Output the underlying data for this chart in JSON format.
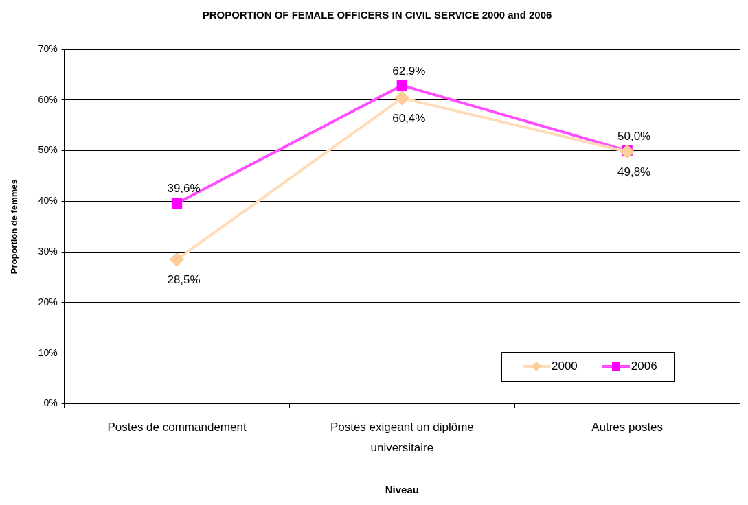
{
  "chart_data": {
    "type": "line",
    "title": "PROPORTION OF FEMALE OFFICERS IN CIVIL SERVICE 2000 and 2006",
    "xlabel": "Niveau",
    "ylabel": "Proportion de femmes",
    "categories": [
      "Postes de commandement",
      "Postes exigeant un diplôme universitaire",
      "Autres postes"
    ],
    "series": [
      {
        "name": "2000",
        "color": "#ffcc99",
        "marker": "diamond",
        "values": [
          28.5,
          60.4,
          49.8
        ],
        "value_labels": [
          "28,5%",
          "60,4%",
          "49,8%"
        ]
      },
      {
        "name": "2006",
        "color": "#ff00ff",
        "marker": "square",
        "values": [
          39.6,
          62.9,
          50.0
        ],
        "value_labels": [
          "39,6%",
          "62,9%",
          "50,0%"
        ]
      }
    ],
    "ylim": [
      0,
      70
    ],
    "yticks": [
      {
        "value": 0,
        "label": "0%"
      },
      {
        "value": 10,
        "label": "10%"
      },
      {
        "value": 20,
        "label": "20%"
      },
      {
        "value": 30,
        "label": "30%"
      },
      {
        "value": 40,
        "label": "40%"
      },
      {
        "value": 50,
        "label": "50%"
      },
      {
        "value": 60,
        "label": "60%"
      },
      {
        "value": 70,
        "label": "70%"
      }
    ],
    "grid": "y",
    "legend": "bottom right"
  }
}
